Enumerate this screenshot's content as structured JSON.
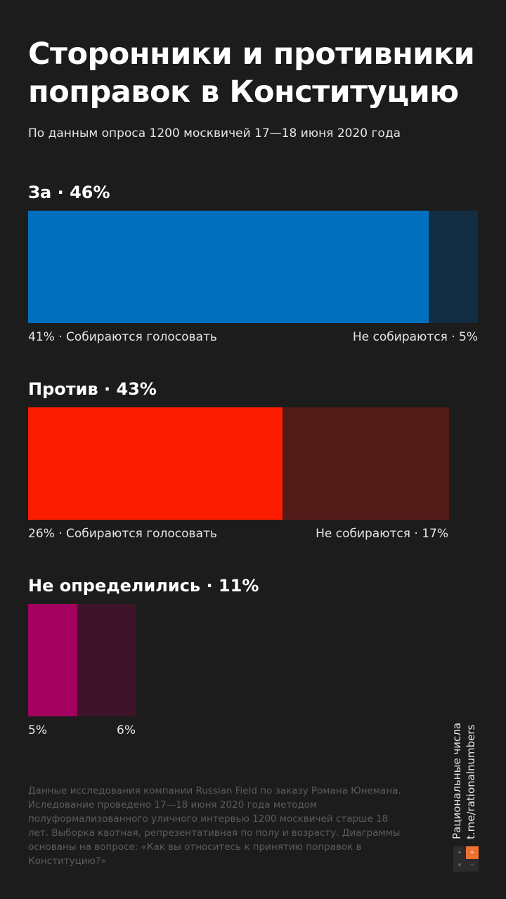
{
  "title": "Сторонники и противники поправок в Конституцию",
  "subtitle": "По данным опроса 1200 москвичей 17—18 июня 2020 года",
  "chart_data": {
    "type": "bar",
    "orientation": "horizontal-stacked",
    "groups": [
      {
        "label": "За · 46%",
        "total": 46,
        "segments": [
          {
            "value": 41,
            "label": "41% · Собираются голосовать",
            "color": "#0070be"
          },
          {
            "value": 5,
            "label": "Не собираются · 5%",
            "color": "#122c42"
          }
        ]
      },
      {
        "label": "Против · 43%",
        "total": 43,
        "segments": [
          {
            "value": 26,
            "label": "26% · Собираются голосовать",
            "color": "#fc1c00"
          },
          {
            "value": 17,
            "label": "Не собираются · 17%",
            "color": "#521b17"
          }
        ]
      },
      {
        "label": "Не определились · 11%",
        "total": 11,
        "segments": [
          {
            "value": 5,
            "label": "5%",
            "color": "#a30060"
          },
          {
            "value": 6,
            "label": "6%",
            "color": "#3e1428"
          }
        ]
      }
    ]
  },
  "footnote": "Данные исследования компании Russian Field по заказу Романа Юнемана. Иследование проведено 17—18 июня 2020 года методом полуформализованного уличного интервью 1200 москвичей старше 18 лет. Выборка квотная, репрезентативная по полу и возрасту. Диаграммы основаны на вопросе: «Как вы относитесь к принятию поправок в Конституцию?»",
  "brand": {
    "name": "Рациональные числа",
    "link": "t.me/rationalnumbers",
    "logo_cells": [
      {
        "glyph": "+",
        "bg": "#2c2c2c",
        "fg": "#8a8a8a"
      },
      {
        "glyph": "÷",
        "bg": "#f07030",
        "fg": "#ffffff"
      },
      {
        "glyph": "×",
        "bg": "#2c2c2c",
        "fg": "#8a8a8a"
      },
      {
        "glyph": "−",
        "bg": "#2c2c2c",
        "fg": "#8a8a8a"
      }
    ]
  }
}
